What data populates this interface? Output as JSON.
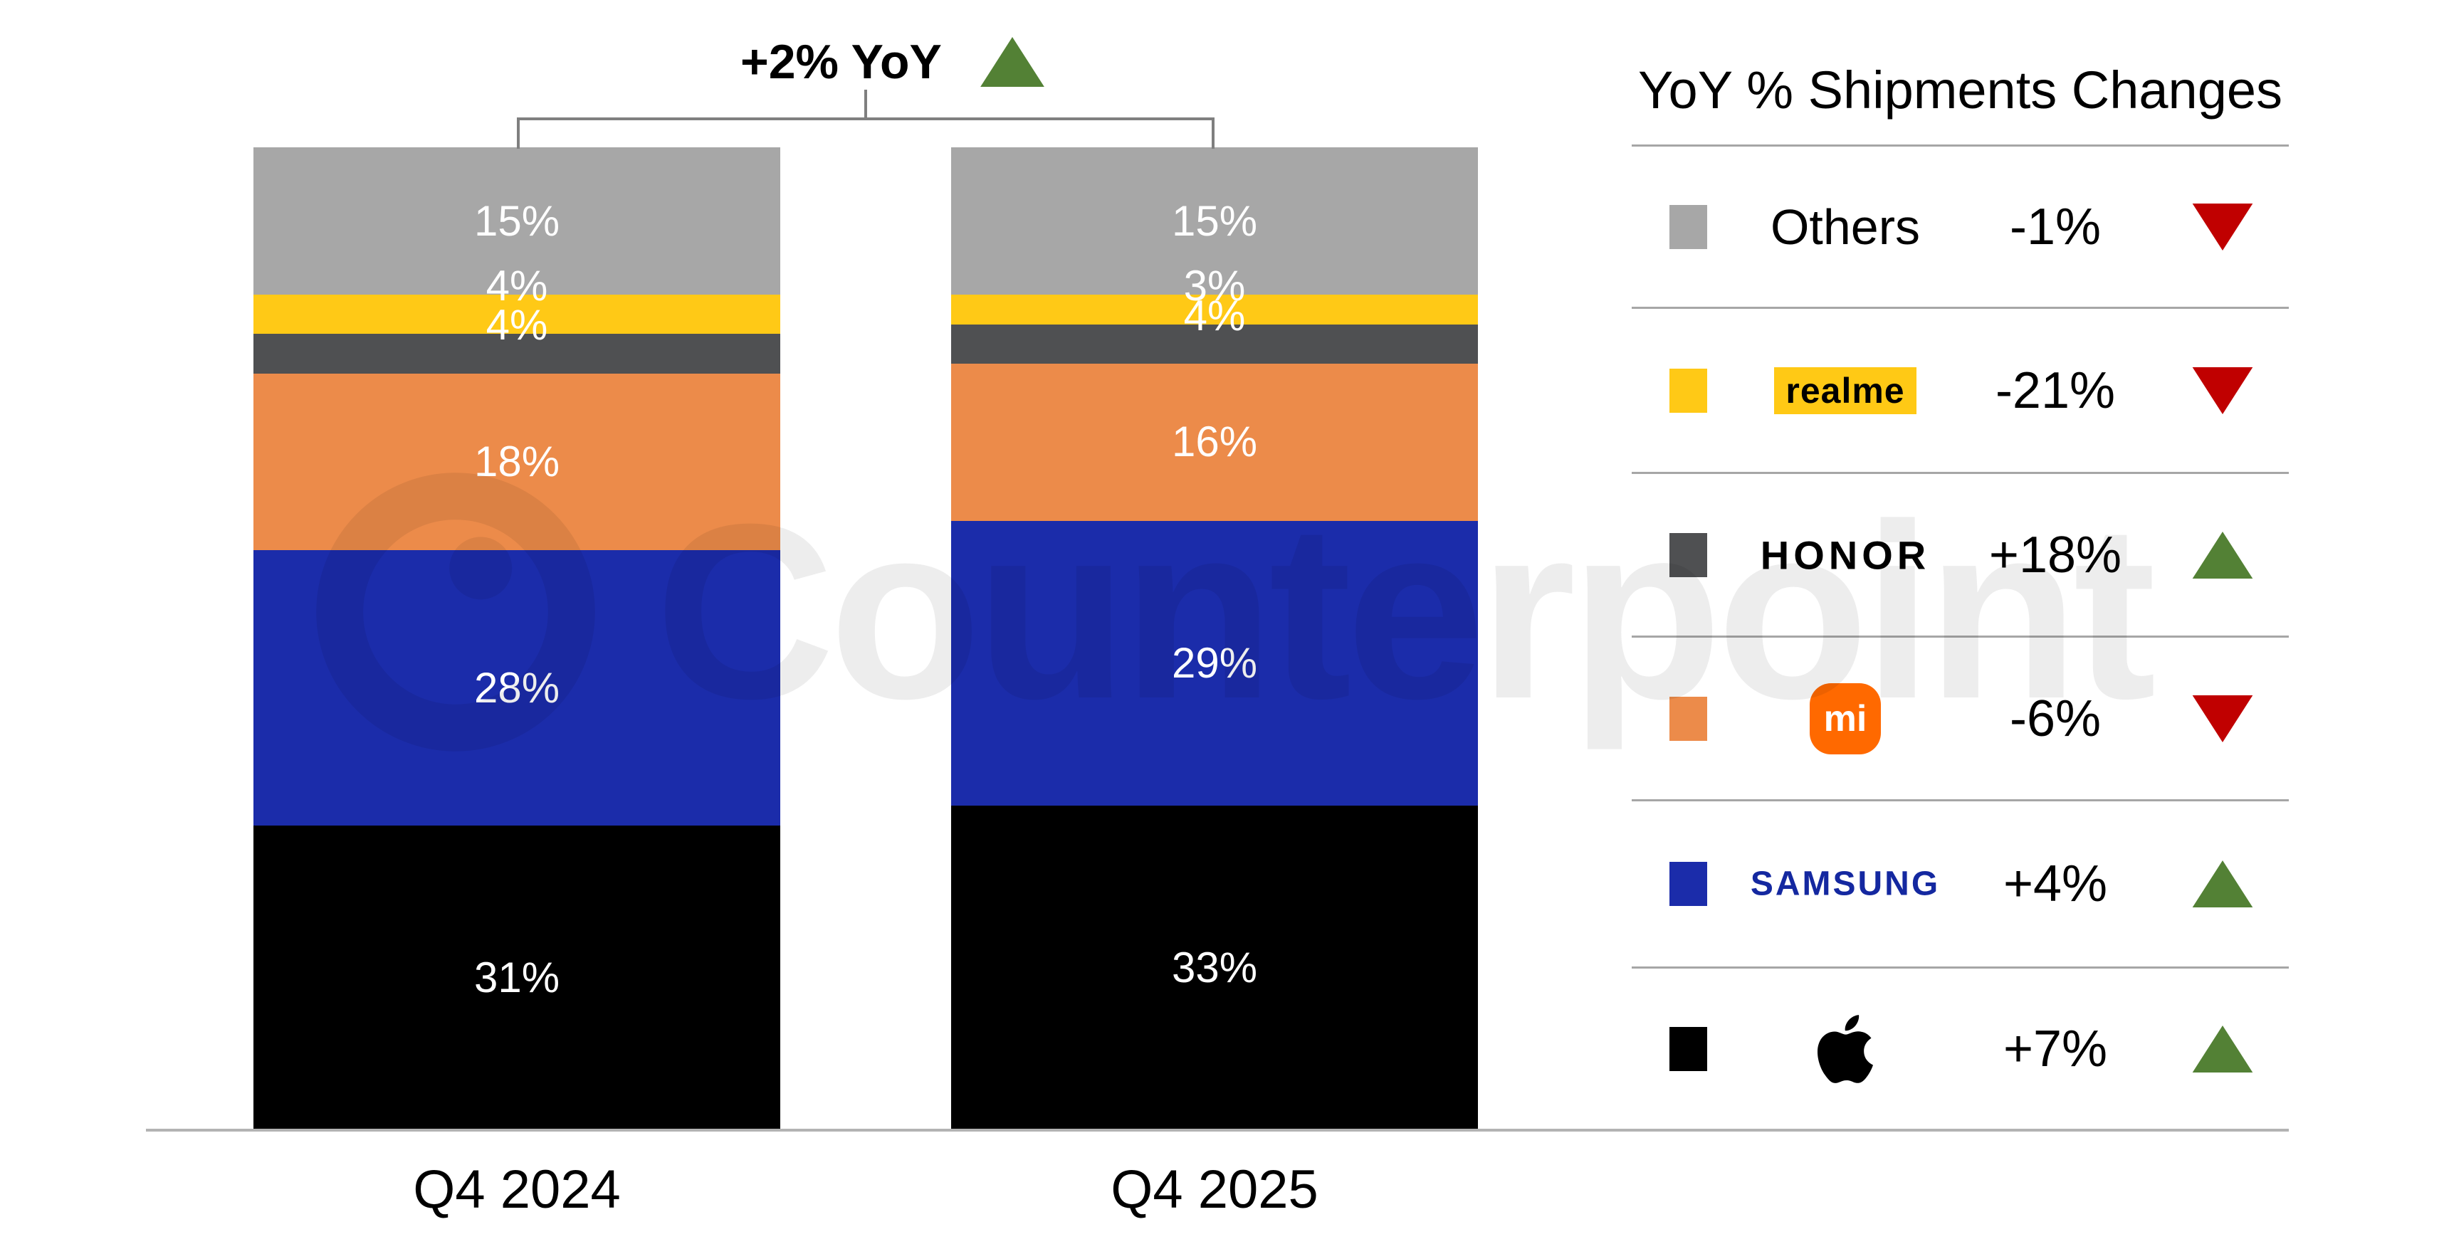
{
  "title": {
    "text": "+2% YoY",
    "direction": "up"
  },
  "watermark": {
    "text": "Counterpoint"
  },
  "chart_data": {
    "type": "bar",
    "subtype": "stacked-100-percent",
    "title": "+2% YoY",
    "categories": [
      "Q4 2024",
      "Q4 2025"
    ],
    "series": [
      {
        "name": "Others",
        "color": "#a7a7a7",
        "values": [
          15,
          15
        ]
      },
      {
        "name": "realme",
        "color": "#ffc916",
        "values": [
          4,
          3
        ]
      },
      {
        "name": "HONOR",
        "color": "#4f5052",
        "values": [
          4,
          4
        ]
      },
      {
        "name": "Xiaomi",
        "color": "#ec8b4a",
        "values": [
          18,
          16
        ]
      },
      {
        "name": "Samsung",
        "color": "#1b2caa",
        "values": [
          28,
          29
        ]
      },
      {
        "name": "Apple",
        "color": "#000000",
        "values": [
          31,
          33
        ]
      }
    ],
    "value_suffix": "%",
    "ylim": [
      0,
      100
    ],
    "grid": false,
    "legend_position": "right"
  },
  "legend": {
    "title": "YoY % Shipments Changes",
    "items": [
      {
        "brand": "Others",
        "logo_text": "Others",
        "change": "-1%",
        "direction": "down",
        "swatch": "#a7a7a7"
      },
      {
        "brand": "realme",
        "logo_text": "realme",
        "change": "-21%",
        "direction": "down",
        "swatch": "#ffc916",
        "logo_bg": "#ffc915",
        "logo_color": "#000000"
      },
      {
        "brand": "HONOR",
        "logo_text": "HONOR",
        "change": "+18%",
        "direction": "up",
        "swatch": "#4f5052",
        "logo_color": "#000000"
      },
      {
        "brand": "Xiaomi",
        "logo_text": "mi",
        "change": "-6%",
        "direction": "down",
        "swatch": "#ec8b4a",
        "logo_bg": "#ff6900",
        "logo_color": "#ffffff"
      },
      {
        "brand": "Samsung",
        "logo_text": "SAMSUNG",
        "change": "+4%",
        "direction": "up",
        "swatch": "#1b2caa",
        "logo_color": "#1428a0"
      },
      {
        "brand": "Apple",
        "logo_text": "",
        "change": "+7%",
        "direction": "up",
        "swatch": "#000000",
        "logo_color": "#000000"
      }
    ]
  },
  "colors": {
    "up": "#538135",
    "down": "#c00000",
    "axis": "#b3b3b3",
    "divider": "#a6a6a6",
    "bracket": "#7f7f7f"
  }
}
